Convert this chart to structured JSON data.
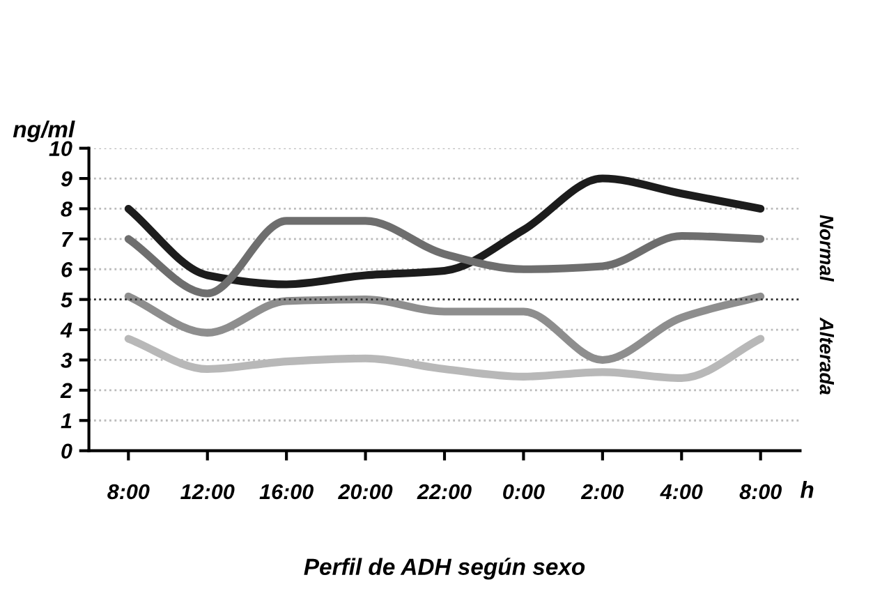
{
  "chart_data": {
    "type": "line",
    "title": "Perfil de ADH según sexo",
    "xlabel": "h",
    "ylabel": "ng/ml",
    "categories": [
      "8:00",
      "12:00",
      "16:00",
      "20:00",
      "22:00",
      "0:00",
      "2:00",
      "4:00",
      "8:00"
    ],
    "series": [
      {
        "color": "#1c1c1c",
        "values": [
          8.0,
          5.8,
          5.5,
          5.8,
          5.95,
          7.3,
          9.0,
          8.5,
          8.0
        ]
      },
      {
        "color": "#6e6e6e",
        "values": [
          7.0,
          5.2,
          7.6,
          7.6,
          6.5,
          6.0,
          6.1,
          7.1,
          7.0
        ]
      },
      {
        "color": "#8e8e8e",
        "values": [
          5.1,
          3.9,
          4.95,
          5.0,
          4.6,
          4.6,
          3.0,
          4.4,
          5.1
        ]
      },
      {
        "color": "#b8b8b8",
        "values": [
          3.7,
          2.7,
          2.95,
          3.05,
          2.7,
          2.45,
          2.6,
          2.4,
          3.7
        ]
      }
    ],
    "ylim": [
      0,
      10
    ],
    "yticks": [
      0,
      1,
      2,
      3,
      4,
      5,
      6,
      7,
      8,
      9,
      10
    ],
    "grid": "y",
    "legend": false,
    "marker": "none",
    "line_style": "solid",
    "ref_lines": [
      {
        "axis": "y",
        "value": 5,
        "color": "#333333",
        "line_style": "dotted"
      }
    ],
    "annotations": [
      "Normal",
      "Alterada"
    ]
  }
}
